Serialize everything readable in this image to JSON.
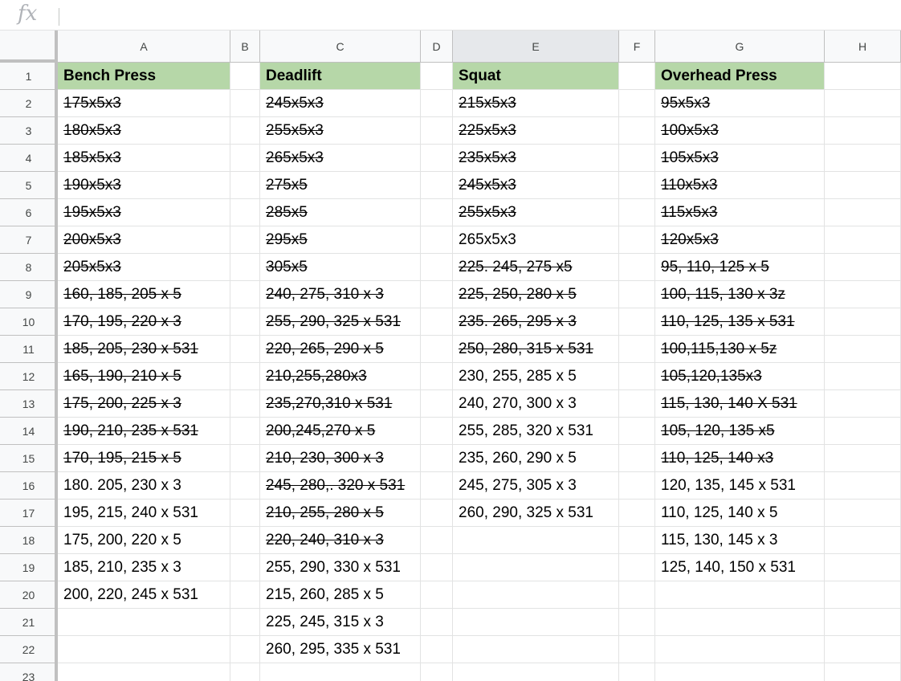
{
  "formula_bar": {
    "icon": "fx-icon",
    "label": "fx",
    "value": ""
  },
  "columns": [
    "A",
    "B",
    "C",
    "D",
    "E",
    "F",
    "G",
    "H"
  ],
  "active_column": "E",
  "rows": [
    "1",
    "2",
    "3",
    "4",
    "5",
    "6",
    "7",
    "8",
    "9",
    "10",
    "11",
    "12",
    "13",
    "14",
    "15",
    "16",
    "17",
    "18",
    "19",
    "20",
    "21",
    "22",
    "23"
  ],
  "colors": {
    "header_fill": "#b6d7a8",
    "grid_line": "#e2e3e3",
    "heading_bg": "#f8f9fa"
  },
  "sheet": {
    "A": {
      "header": "Bench Press",
      "entries": [
        {
          "text": "175x5x3",
          "done": true
        },
        {
          "text": "180x5x3",
          "done": true
        },
        {
          "text": "185x5x3",
          "done": true
        },
        {
          "text": "190x5x3",
          "done": true
        },
        {
          "text": "195x5x3",
          "done": true
        },
        {
          "text": "200x5x3",
          "done": true
        },
        {
          "text": "205x5x3",
          "done": true
        },
        {
          "text": "160, 185, 205 x 5",
          "done": true
        },
        {
          "text": "170, 195, 220 x 3",
          "done": true
        },
        {
          "text": "185, 205, 230 x 531",
          "done": true
        },
        {
          "text": "165, 190, 210 x 5",
          "done": true
        },
        {
          "text": "175, 200, 225 x 3",
          "done": true
        },
        {
          "text": "190, 210, 235 x 531",
          "done": true
        },
        {
          "text": "170, 195, 215 x 5",
          "done": true
        },
        {
          "text": "180. 205, 230 x 3",
          "done": false
        },
        {
          "text": "195, 215, 240 x 531",
          "done": false
        },
        {
          "text": "175, 200, 220 x 5",
          "done": false
        },
        {
          "text": "185, 210, 235 x 3",
          "done": false
        },
        {
          "text": "200, 220, 245 x 531",
          "done": false
        }
      ]
    },
    "C": {
      "header": "Deadlift",
      "entries": [
        {
          "text": "245x5x3",
          "done": true
        },
        {
          "text": "255x5x3",
          "done": true
        },
        {
          "text": "265x5x3",
          "done": true
        },
        {
          "text": "275x5",
          "done": true
        },
        {
          "text": "285x5",
          "done": true
        },
        {
          "text": "295x5",
          "done": true
        },
        {
          "text": "305x5",
          "done": true
        },
        {
          "text": "240, 275, 310 x 3",
          "done": true
        },
        {
          "text": "255, 290, 325 x 531",
          "done": true
        },
        {
          "text": "220, 265, 290 x 5",
          "done": true
        },
        {
          "text": "210,255,280x3",
          "done": true
        },
        {
          "text": "235,270,310 x 531",
          "done": true
        },
        {
          "text": "200,245,270 x 5",
          "done": true
        },
        {
          "text": "210, 230, 300 x 3",
          "done": true
        },
        {
          "text": "245, 280,. 320 x 531",
          "done": true
        },
        {
          "text": "210, 255, 280 x 5",
          "done": true
        },
        {
          "text": "220, 240, 310 x 3",
          "done": true
        },
        {
          "text": "255, 290, 330 x 531",
          "done": false
        },
        {
          "text": "215, 260, 285 x 5",
          "done": false
        },
        {
          "text": "225, 245, 315 x 3",
          "done": false
        },
        {
          "text": "260, 295, 335 x 531",
          "done": false
        }
      ]
    },
    "E": {
      "header": "Squat",
      "entries": [
        {
          "text": "215x5x3",
          "done": true
        },
        {
          "text": "225x5x3",
          "done": true
        },
        {
          "text": "235x5x3",
          "done": true
        },
        {
          "text": "245x5x3",
          "done": true
        },
        {
          "text": "255x5x3",
          "done": true
        },
        {
          "text": "265x5x3",
          "done": false
        },
        {
          "text": "225. 245, 275 x5",
          "done": true
        },
        {
          "text": "225, 250, 280 x 5",
          "done": true
        },
        {
          "text": "235. 265, 295 x 3",
          "done": true
        },
        {
          "text": "250, 280, 315 x 531",
          "done": true
        },
        {
          "text": "230, 255, 285 x 5",
          "done": false
        },
        {
          "text": "240, 270, 300 x 3",
          "done": false
        },
        {
          "text": "255, 285, 320 x 531",
          "done": false
        },
        {
          "text": "235, 260, 290 x 5",
          "done": false
        },
        {
          "text": "245, 275, 305 x 3",
          "done": false
        },
        {
          "text": "260, 290, 325 x 531",
          "done": false
        }
      ]
    },
    "G": {
      "header": "Overhead Press",
      "entries": [
        {
          "text": "95x5x3",
          "done": true
        },
        {
          "text": "100x5x3",
          "done": true
        },
        {
          "text": "105x5x3",
          "done": true
        },
        {
          "text": "110x5x3",
          "done": true
        },
        {
          "text": "115x5x3",
          "done": true
        },
        {
          "text": "120x5x3",
          "done": true
        },
        {
          "text": "95, 110, 125 x 5",
          "done": true
        },
        {
          "text": "100, 115, 130 x 3z",
          "done": true
        },
        {
          "text": "110, 125, 135 x 531",
          "done": true
        },
        {
          "text": "100,115,130 x 5z",
          "done": true
        },
        {
          "text": "105,120,135x3",
          "done": true
        },
        {
          "text": "115, 130, 140 X 531",
          "done": true
        },
        {
          "text": "105, 120, 135 x5",
          "done": true
        },
        {
          "text": "110, 125, 140 x3",
          "done": true
        },
        {
          "text": "120, 135, 145 x 531",
          "done": false
        },
        {
          "text": "110, 125, 140 x 5",
          "done": false
        },
        {
          "text": "115, 130, 145 x 3",
          "done": false
        },
        {
          "text": "125, 140, 150 x 531",
          "done": false
        }
      ]
    }
  }
}
